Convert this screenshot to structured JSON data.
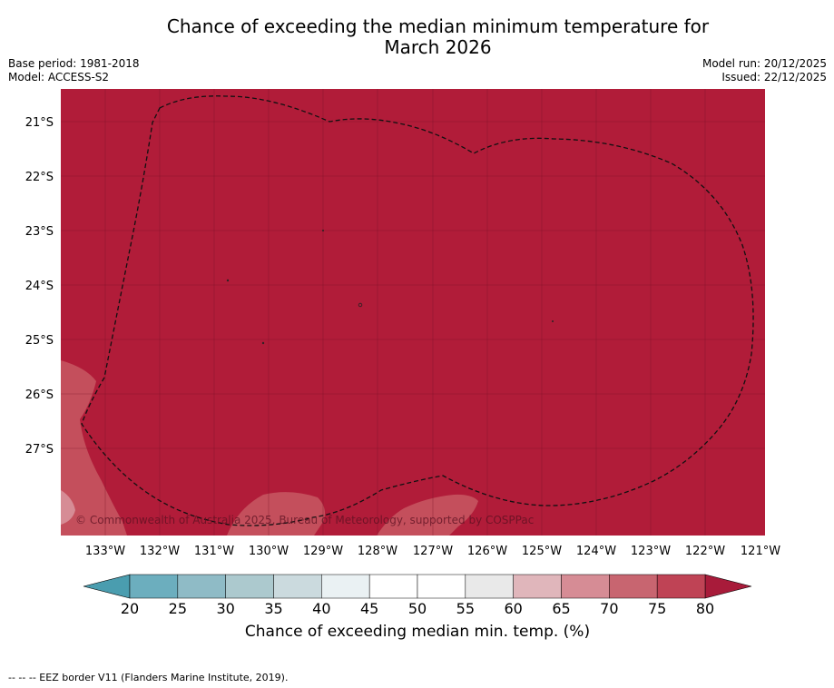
{
  "title": {
    "line1": "Chance of exceeding the median minimum temperature for",
    "line2": "March 2026"
  },
  "meta": {
    "base_period": "Base period: 1981-2018",
    "model": "Model: ACCESS-S2",
    "model_run": "Model run: 20/12/2025",
    "issued": "Issued: 22/12/2025"
  },
  "map": {
    "copyright": "© Commonwealth of Australia 2025, Bureau of Meteorology, supported by COSPPac",
    "lat_labels": [
      "21°S",
      "22°S",
      "23°S",
      "24°S",
      "25°S",
      "26°S",
      "27°S"
    ],
    "lon_labels": [
      "133°W",
      "132°W",
      "131°W",
      "130°W",
      "129°W",
      "128°W",
      "127°W",
      "126°W",
      "125°W",
      "124°W",
      "123°W",
      "122°W",
      "121°W"
    ],
    "dominant_color": "#b11c39",
    "lighter_color": "#c44f5c"
  },
  "colorbar": {
    "ticks": [
      "20",
      "25",
      "30",
      "35",
      "40",
      "45",
      "50",
      "55",
      "60",
      "65",
      "70",
      "75",
      "80"
    ],
    "colors": [
      "#6caebe",
      "#8fbbc6",
      "#acc9ce",
      "#cbdade",
      "#eaf1f3",
      "#ffffff",
      "#ffffff",
      "#e9e9e9",
      "#e0b6bb",
      "#d68c95",
      "#c86570",
      "#bf4355"
    ],
    "under_color": "#4a9daf",
    "over_color": "#a81b3a",
    "label": "Chance of exceeding median min. temp. (%)"
  },
  "footnote": "--  --  -- EEZ border V11 (Flanders Marine Institute, 2019)."
}
